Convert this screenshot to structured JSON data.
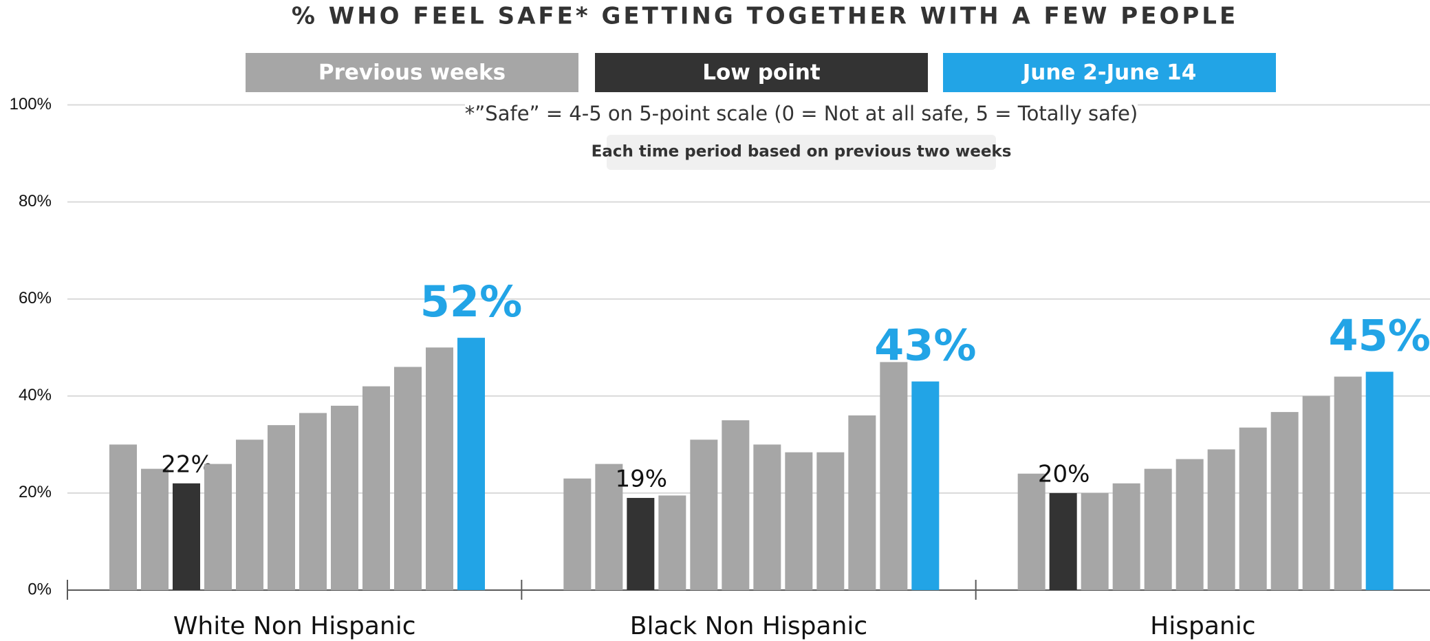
{
  "chart_data": {
    "type": "bar",
    "title": "% WHO FEEL SAFE* GETTING TOGETHER WITH A FEW PEOPLE",
    "legend": [
      {
        "name": "Previous weeks",
        "color": "#a6a6a6"
      },
      {
        "name": "Low point",
        "color": "#333333"
      },
      {
        "name": "June 2-June 14",
        "color": "#22a4e6"
      }
    ],
    "note": "*”Safe” = 4-5 on 5-point scale (0 = Not at all safe, 5 = Totally safe)",
    "subnote": "Each time period based on previous two weeks",
    "groups": [
      {
        "name": "White Non Hispanic",
        "values": [
          30,
          25,
          22,
          26,
          31,
          34,
          36.5,
          38,
          42,
          46,
          50,
          52
        ],
        "colors": [
          "#a6a6a6",
          "#a6a6a6",
          "#333333",
          "#a6a6a6",
          "#a6a6a6",
          "#a6a6a6",
          "#a6a6a6",
          "#a6a6a6",
          "#a6a6a6",
          "#a6a6a6",
          "#a6a6a6",
          "#22a4e6"
        ],
        "value_labels": [
          null,
          null,
          "22%",
          null,
          null,
          null,
          null,
          null,
          null,
          null,
          null,
          "52%"
        ]
      },
      {
        "name": "Black Non Hispanic",
        "values": [
          23,
          26,
          19,
          19.5,
          31,
          35,
          30,
          28.4,
          28.4,
          36,
          47,
          43
        ],
        "colors": [
          "#a6a6a6",
          "#a6a6a6",
          "#333333",
          "#a6a6a6",
          "#a6a6a6",
          "#a6a6a6",
          "#a6a6a6",
          "#a6a6a6",
          "#a6a6a6",
          "#a6a6a6",
          "#a6a6a6",
          "#22a4e6"
        ],
        "value_labels": [
          null,
          null,
          "19%",
          null,
          null,
          null,
          null,
          null,
          null,
          null,
          null,
          "43%"
        ]
      },
      {
        "name": "Hispanic",
        "values": [
          24,
          20,
          20,
          22,
          25,
          27,
          29,
          33.5,
          36.7,
          40,
          44,
          45
        ],
        "colors": [
          "#a6a6a6",
          "#333333",
          "#a6a6a6",
          "#a6a6a6",
          "#a6a6a6",
          "#a6a6a6",
          "#a6a6a6",
          "#a6a6a6",
          "#a6a6a6",
          "#a6a6a6",
          "#a6a6a6",
          "#22a4e6"
        ],
        "value_labels": [
          null,
          "20%",
          null,
          null,
          null,
          null,
          null,
          null,
          null,
          null,
          null,
          "45%"
        ]
      }
    ],
    "ylim": [
      0,
      100
    ],
    "yticks": [
      {
        "value": 0,
        "label": "0%"
      },
      {
        "value": 20,
        "label": "20%"
      },
      {
        "value": 40,
        "label": "40%"
      },
      {
        "value": 60,
        "label": "60%"
      },
      {
        "value": 80,
        "label": "80%"
      },
      {
        "value": 100,
        "label": "100%"
      }
    ],
    "grid": true
  }
}
